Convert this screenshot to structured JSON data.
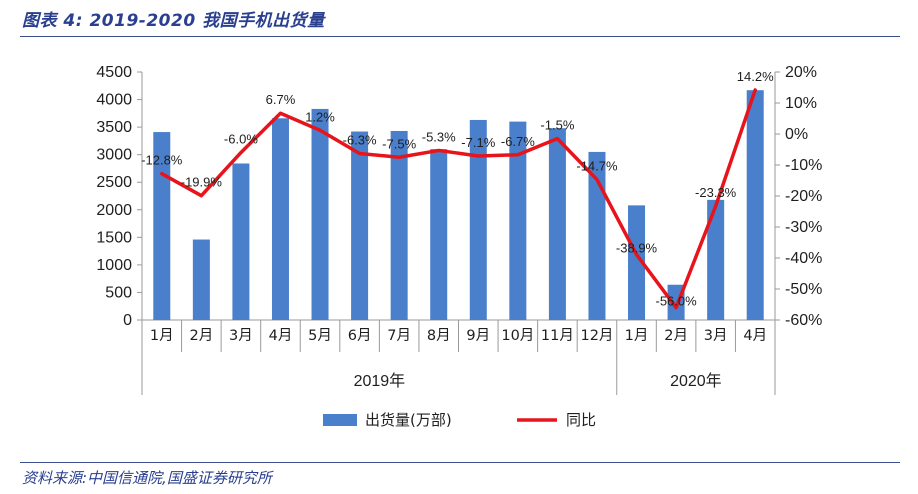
{
  "header": {
    "title": "图表 4:  2019-2020 我国手机出货量"
  },
  "footer": {
    "source": "资料来源:中国信通院,国盛证券研究所"
  },
  "colors": {
    "bar": "#4a7fcb",
    "line": "#e8141b",
    "header_rule": "#3b4f8c"
  },
  "chart_data": {
    "type": "bar",
    "categories": [
      "1月",
      "2月",
      "3月",
      "4月",
      "5月",
      "6月",
      "7月",
      "8月",
      "9月",
      "10月",
      "11月",
      "12月",
      "1月",
      "2月",
      "3月",
      "4月"
    ],
    "groups": [
      {
        "label": "2019年",
        "count": 12
      },
      {
        "label": "2020年",
        "count": 4
      }
    ],
    "series": [
      {
        "name": "出货量(万部)",
        "type": "bar",
        "axis": "left",
        "values": [
          3410,
          1460,
          2840,
          3660,
          3830,
          3420,
          3430,
          3100,
          3630,
          3600,
          3480,
          3050,
          2080,
          640,
          2180,
          4170
        ]
      },
      {
        "name": "同比",
        "type": "line",
        "axis": "right",
        "values": [
          -12.8,
          -19.9,
          -6.0,
          6.7,
          1.2,
          -6.3,
          -7.5,
          -5.3,
          -7.1,
          -6.7,
          -1.5,
          -14.7,
          -38.9,
          -56.0,
          -23.3,
          14.2
        ],
        "labels": [
          "-12.8%",
          "-19.9%",
          "-6.0%",
          "6.7%",
          "1.2%",
          "-6.3%",
          "-7.5%",
          "-5.3%",
          "-7.1%",
          "-6.7%",
          "-1.5%",
          "-14.7%",
          "-38.9%",
          "-56.0%",
          "-23.3%",
          "14.2%"
        ]
      }
    ],
    "ylim_left": [
      0,
      4500
    ],
    "yticks_left": [
      "0",
      "500",
      "1000",
      "1500",
      "2000",
      "2500",
      "3000",
      "3500",
      "4000",
      "4500"
    ],
    "ylim_right": [
      -60,
      20
    ],
    "yticks_right": [
      "-60%",
      "-50%",
      "-40%",
      "-30%",
      "-20%",
      "-10%",
      "0%",
      "10%",
      "20%"
    ],
    "legend": {
      "position": "bottom",
      "entries": [
        "出货量(万部)",
        "同比"
      ]
    },
    "grid": false
  }
}
